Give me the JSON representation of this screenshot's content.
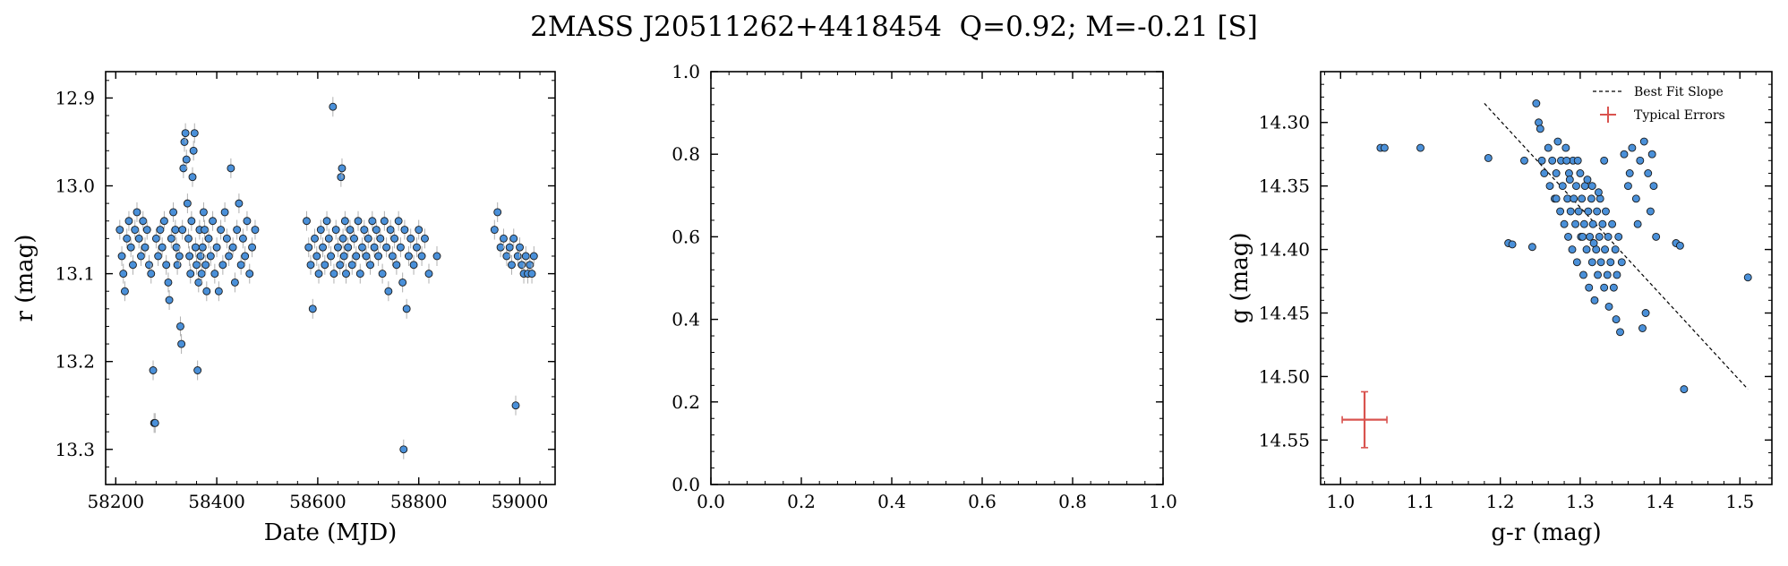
{
  "figure": {
    "title": "2MASS J20511262+4418454  Q=0.92; M=-0.21 [S]"
  },
  "chart_data": [
    {
      "type": "scatter",
      "panel": "lightcurve",
      "xlabel": "Date (MJD)",
      "ylabel": "r (mag)",
      "xlim": [
        58180,
        59070
      ],
      "ylim": [
        13.34,
        12.87
      ],
      "y_inverted": true,
      "xticks": [
        58200,
        58400,
        58600,
        58800,
        59000
      ],
      "yticks": [
        12.9,
        13.0,
        13.1,
        13.2,
        13.3
      ],
      "marker_color": "#4a90d9",
      "errorbar_color": "#b0b0b0",
      "points": [
        [
          58208,
          13.05
        ],
        [
          58212,
          13.08
        ],
        [
          58215,
          13.1
        ],
        [
          58218,
          13.12
        ],
        [
          58222,
          13.06
        ],
        [
          58226,
          13.04
        ],
        [
          58230,
          13.07
        ],
        [
          58234,
          13.09
        ],
        [
          58238,
          13.05
        ],
        [
          58242,
          13.03
        ],
        [
          58246,
          13.06
        ],
        [
          58250,
          13.08
        ],
        [
          58254,
          13.04
        ],
        [
          58258,
          13.07
        ],
        [
          58262,
          13.05
        ],
        [
          58266,
          13.09
        ],
        [
          58270,
          13.1
        ],
        [
          58274,
          13.21
        ],
        [
          58276,
          13.27
        ],
        [
          58278,
          13.27
        ],
        [
          58280,
          13.06
        ],
        [
          58284,
          13.08
        ],
        [
          58288,
          13.05
        ],
        [
          58292,
          13.07
        ],
        [
          58296,
          13.04
        ],
        [
          58300,
          13.09
        ],
        [
          58304,
          13.11
        ],
        [
          58306,
          13.13
        ],
        [
          58310,
          13.06
        ],
        [
          58314,
          13.03
        ],
        [
          58318,
          13.05
        ],
        [
          58320,
          13.07
        ],
        [
          58322,
          13.09
        ],
        [
          58326,
          13.08
        ],
        [
          58328,
          13.16
        ],
        [
          58330,
          13.18
        ],
        [
          58332,
          13.05
        ],
        [
          58334,
          12.98
        ],
        [
          58336,
          12.95
        ],
        [
          58338,
          12.94
        ],
        [
          58340,
          12.97
        ],
        [
          58342,
          13.02
        ],
        [
          58344,
          13.06
        ],
        [
          58346,
          13.08
        ],
        [
          58348,
          13.1
        ],
        [
          58350,
          13.04
        ],
        [
          58352,
          12.99
        ],
        [
          58354,
          12.96
        ],
        [
          58356,
          12.94
        ],
        [
          58358,
          13.07
        ],
        [
          58360,
          13.09
        ],
        [
          58362,
          13.21
        ],
        [
          58364,
          13.11
        ],
        [
          58366,
          13.05
        ],
        [
          58368,
          13.08
        ],
        [
          58370,
          13.1
        ],
        [
          58372,
          13.07
        ],
        [
          58374,
          13.03
        ],
        [
          58376,
          13.05
        ],
        [
          58378,
          13.09
        ],
        [
          58380,
          13.12
        ],
        [
          58384,
          13.06
        ],
        [
          58388,
          13.08
        ],
        [
          58392,
          13.04
        ],
        [
          58396,
          13.1
        ],
        [
          58400,
          13.07
        ],
        [
          58404,
          13.12
        ],
        [
          58408,
          13.05
        ],
        [
          58412,
          13.09
        ],
        [
          58416,
          13.03
        ],
        [
          58420,
          13.06
        ],
        [
          58424,
          13.08
        ],
        [
          58428,
          12.98
        ],
        [
          58432,
          13.07
        ],
        [
          58436,
          13.11
        ],
        [
          58440,
          13.05
        ],
        [
          58444,
          13.02
        ],
        [
          58448,
          13.09
        ],
        [
          58452,
          13.06
        ],
        [
          58456,
          13.08
        ],
        [
          58460,
          13.04
        ],
        [
          58465,
          13.1
        ],
        [
          58470,
          13.07
        ],
        [
          58476,
          13.05
        ],
        [
          58578,
          13.04
        ],
        [
          58582,
          13.07
        ],
        [
          58586,
          13.09
        ],
        [
          58590,
          13.14
        ],
        [
          58594,
          13.06
        ],
        [
          58598,
          13.08
        ],
        [
          58602,
          13.1
        ],
        [
          58606,
          13.05
        ],
        [
          58610,
          13.07
        ],
        [
          58614,
          13.09
        ],
        [
          58618,
          13.04
        ],
        [
          58622,
          13.06
        ],
        [
          58626,
          13.08
        ],
        [
          58630,
          12.91
        ],
        [
          58632,
          13.1
        ],
        [
          58636,
          13.05
        ],
        [
          58640,
          13.07
        ],
        [
          58644,
          13.09
        ],
        [
          58646,
          12.99
        ],
        [
          58648,
          12.98
        ],
        [
          58650,
          13.06
        ],
        [
          58652,
          13.08
        ],
        [
          58654,
          13.04
        ],
        [
          58656,
          13.1
        ],
        [
          58660,
          13.07
        ],
        [
          58664,
          13.05
        ],
        [
          58668,
          13.09
        ],
        [
          58672,
          13.06
        ],
        [
          58676,
          13.08
        ],
        [
          58680,
          13.04
        ],
        [
          58684,
          13.1
        ],
        [
          58688,
          13.07
        ],
        [
          58692,
          13.05
        ],
        [
          58696,
          13.08
        ],
        [
          58700,
          13.06
        ],
        [
          58704,
          13.09
        ],
        [
          58708,
          13.04
        ],
        [
          58712,
          13.07
        ],
        [
          58716,
          13.05
        ],
        [
          58720,
          13.08
        ],
        [
          58724,
          13.06
        ],
        [
          58728,
          13.1
        ],
        [
          58732,
          13.04
        ],
        [
          58736,
          13.07
        ],
        [
          58740,
          13.12
        ],
        [
          58744,
          13.05
        ],
        [
          58748,
          13.08
        ],
        [
          58752,
          13.06
        ],
        [
          58756,
          13.09
        ],
        [
          58760,
          13.04
        ],
        [
          58764,
          13.07
        ],
        [
          58768,
          13.11
        ],
        [
          58772,
          13.05
        ],
        [
          58776,
          13.14
        ],
        [
          58780,
          13.08
        ],
        [
          58784,
          13.06
        ],
        [
          58790,
          13.09
        ],
        [
          58796,
          13.07
        ],
        [
          58800,
          13.05
        ],
        [
          58806,
          13.08
        ],
        [
          58812,
          13.06
        ],
        [
          58820,
          13.1
        ],
        [
          58836,
          13.08
        ],
        [
          58770,
          13.3
        ],
        [
          58950,
          13.05
        ],
        [
          58956,
          13.03
        ],
        [
          58962,
          13.07
        ],
        [
          58968,
          13.06
        ],
        [
          58974,
          13.08
        ],
        [
          58980,
          13.07
        ],
        [
          58984,
          13.09
        ],
        [
          58988,
          13.06
        ],
        [
          58992,
          13.25
        ],
        [
          58996,
          13.08
        ],
        [
          59000,
          13.07
        ],
        [
          59004,
          13.09
        ],
        [
          59008,
          13.1
        ],
        [
          59012,
          13.08
        ],
        [
          59016,
          13.1
        ],
        [
          59020,
          13.09
        ],
        [
          59024,
          13.1
        ],
        [
          59028,
          13.08
        ]
      ]
    },
    {
      "type": "scatter",
      "panel": "empty",
      "xlabel": "",
      "ylabel": "",
      "xlim": [
        0.0,
        1.0
      ],
      "ylim": [
        0.0,
        1.0
      ],
      "xticks": [
        0.0,
        0.2,
        0.4,
        0.6,
        0.8,
        1.0
      ],
      "yticks": [
        0.0,
        0.2,
        0.4,
        0.6,
        0.8,
        1.0
      ],
      "points": []
    },
    {
      "type": "scatter",
      "panel": "color-magnitude",
      "xlabel": "g-r (mag)",
      "ylabel": "g (mag)",
      "xlim": [
        0.975,
        1.54
      ],
      "ylim": [
        14.585,
        14.26
      ],
      "y_inverted": true,
      "xticks": [
        1.0,
        1.1,
        1.2,
        1.3,
        1.4,
        1.5
      ],
      "yticks": [
        14.3,
        14.35,
        14.4,
        14.45,
        14.5,
        14.55
      ],
      "marker_color": "#4a90d9",
      "legend": {
        "placement": "top-right",
        "entries": [
          "Best Fit Slope",
          "Typical Errors"
        ]
      },
      "best_fit_line": [
        [
          1.18,
          14.285
        ],
        [
          1.51,
          14.51
        ]
      ],
      "typical_error": {
        "x": 1.03,
        "y": 14.534,
        "xerr": 0.028,
        "yerr": 0.022,
        "color": "#d9534f"
      },
      "points": [
        [
          1.05,
          14.32
        ],
        [
          1.055,
          14.32
        ],
        [
          1.1,
          14.32
        ],
        [
          1.185,
          14.328
        ],
        [
          1.21,
          14.395
        ],
        [
          1.215,
          14.396
        ],
        [
          1.23,
          14.33
        ],
        [
          1.24,
          14.398
        ],
        [
          1.245,
          14.285
        ],
        [
          1.248,
          14.3
        ],
        [
          1.25,
          14.305
        ],
        [
          1.252,
          14.33
        ],
        [
          1.255,
          14.34
        ],
        [
          1.26,
          14.32
        ],
        [
          1.262,
          14.35
        ],
        [
          1.265,
          14.33
        ],
        [
          1.268,
          14.36
        ],
        [
          1.27,
          14.34
        ],
        [
          1.272,
          14.315
        ],
        [
          1.275,
          14.37
        ],
        [
          1.276,
          14.33
        ],
        [
          1.278,
          14.35
        ],
        [
          1.28,
          14.38
        ],
        [
          1.282,
          14.32
        ],
        [
          1.284,
          14.36
        ],
        [
          1.285,
          14.39
        ],
        [
          1.286,
          14.34
        ],
        [
          1.288,
          14.37
        ],
        [
          1.29,
          14.4
        ],
        [
          1.291,
          14.33
        ],
        [
          1.292,
          14.36
        ],
        [
          1.294,
          14.38
        ],
        [
          1.295,
          14.35
        ],
        [
          1.296,
          14.41
        ],
        [
          1.298,
          14.37
        ],
        [
          1.3,
          14.34
        ],
        [
          1.301,
          14.39
        ],
        [
          1.302,
          14.36
        ],
        [
          1.304,
          14.42
        ],
        [
          1.305,
          14.38
        ],
        [
          1.306,
          14.35
        ],
        [
          1.308,
          14.4
        ],
        [
          1.31,
          14.37
        ],
        [
          1.311,
          14.43
        ],
        [
          1.312,
          14.39
        ],
        [
          1.314,
          14.36
        ],
        [
          1.315,
          14.41
        ],
        [
          1.316,
          14.38
        ],
        [
          1.318,
          14.44
        ],
        [
          1.32,
          14.4
        ],
        [
          1.321,
          14.37
        ],
        [
          1.322,
          14.42
        ],
        [
          1.324,
          14.39
        ],
        [
          1.325,
          14.36
        ],
        [
          1.326,
          14.41
        ],
        [
          1.328,
          14.38
        ],
        [
          1.33,
          14.43
        ],
        [
          1.331,
          14.4
        ],
        [
          1.332,
          14.37
        ],
        [
          1.334,
          14.42
        ],
        [
          1.335,
          14.39
        ],
        [
          1.336,
          14.445
        ],
        [
          1.338,
          14.41
        ],
        [
          1.34,
          14.38
        ],
        [
          1.342,
          14.43
        ],
        [
          1.344,
          14.4
        ],
        [
          1.345,
          14.455
        ],
        [
          1.346,
          14.42
        ],
        [
          1.348,
          14.39
        ],
        [
          1.35,
          14.465
        ],
        [
          1.352,
          14.41
        ],
        [
          1.355,
          14.325
        ],
        [
          1.36,
          14.35
        ],
        [
          1.362,
          14.34
        ],
        [
          1.365,
          14.32
        ],
        [
          1.37,
          14.36
        ],
        [
          1.372,
          14.38
        ],
        [
          1.375,
          14.33
        ],
        [
          1.378,
          14.462
        ],
        [
          1.38,
          14.315
        ],
        [
          1.382,
          14.45
        ],
        [
          1.385,
          14.34
        ],
        [
          1.388,
          14.37
        ],
        [
          1.39,
          14.325
        ],
        [
          1.392,
          14.35
        ],
        [
          1.395,
          14.39
        ],
        [
          1.42,
          14.395
        ],
        [
          1.425,
          14.397
        ],
        [
          1.43,
          14.51
        ],
        [
          1.51,
          14.422
        ],
        [
          1.33,
          14.33
        ],
        [
          1.315,
          14.35
        ],
        [
          1.27,
          14.36
        ],
        [
          1.283,
          14.33
        ],
        [
          1.297,
          14.33
        ],
        [
          1.309,
          14.345
        ],
        [
          1.323,
          14.355
        ],
        [
          1.287,
          14.345
        ],
        [
          1.303,
          14.39
        ],
        [
          1.317,
          14.395
        ]
      ]
    }
  ]
}
